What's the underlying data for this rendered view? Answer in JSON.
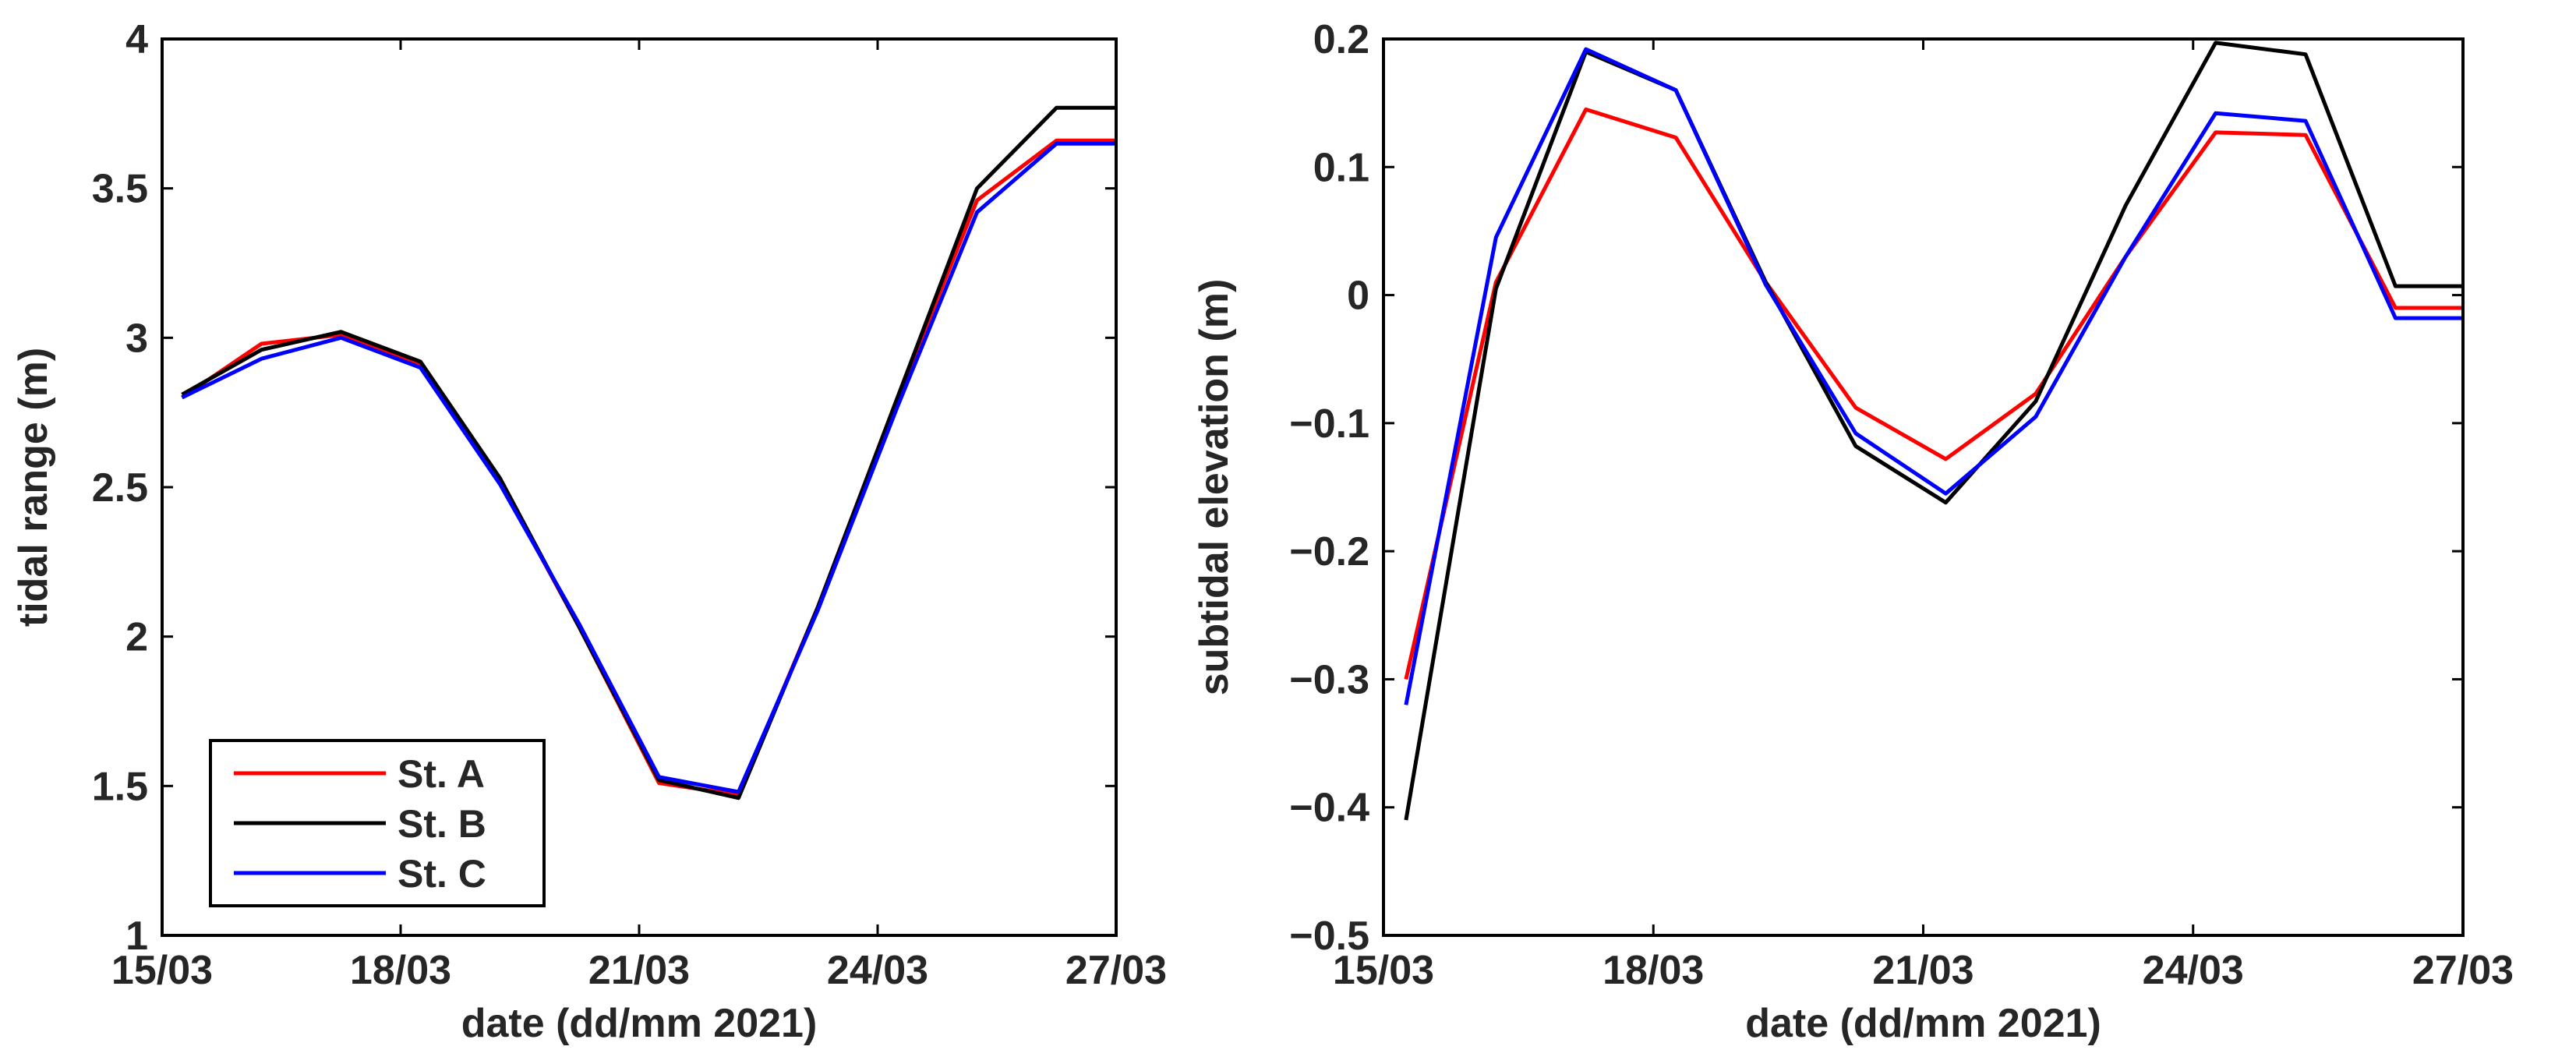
{
  "chart_data": [
    {
      "type": "line",
      "title": "",
      "xlabel": "date (dd/mm 2021)",
      "ylabel": "tidal range (m)",
      "xlim": [
        "15/03",
        "27/03"
      ],
      "xticks": [
        "15/03",
        "18/03",
        "21/03",
        "24/03",
        "27/03"
      ],
      "ylim": [
        1,
        4
      ],
      "yticks": [
        "1",
        "1.5",
        "2",
        "2.5",
        "3",
        "3.5",
        "4"
      ],
      "grid": false,
      "legend": {
        "position": "bottom-left",
        "entries": [
          "St. A",
          "St. B",
          "St. C"
        ]
      },
      "x": [
        "15/03 06:00",
        "16/03 06:00",
        "17/03 06:00",
        "18/03 06:00",
        "19/03 06:00",
        "20/03 06:00",
        "21/03 06:00",
        "22/03 06:00",
        "23/03 06:00",
        "24/03 06:00",
        "25/03 06:00",
        "26/03 06:00",
        "27/03 00:00"
      ],
      "series": [
        {
          "name": "St. A",
          "color": "#ff0000",
          "values": [
            2.8,
            2.98,
            3.01,
            2.91,
            2.52,
            2.03,
            1.51,
            1.47,
            2.1,
            2.8,
            3.46,
            3.66,
            3.66
          ]
        },
        {
          "name": "St. B",
          "color": "#000000",
          "values": [
            2.81,
            2.96,
            3.02,
            2.92,
            2.53,
            2.03,
            1.52,
            1.46,
            2.1,
            2.8,
            3.5,
            3.77,
            3.77
          ]
        },
        {
          "name": "St. C",
          "color": "#0000ff",
          "values": [
            2.8,
            2.93,
            3.0,
            2.9,
            2.51,
            2.04,
            1.53,
            1.48,
            2.09,
            2.77,
            3.42,
            3.65,
            3.65
          ]
        }
      ]
    },
    {
      "type": "line",
      "title": "",
      "xlabel": "date (dd/mm 2021)",
      "ylabel": "subtidal elevation (m)",
      "xlim": [
        "15/03",
        "27/03"
      ],
      "xticks": [
        "15/03",
        "18/03",
        "21/03",
        "24/03",
        "27/03"
      ],
      "ylim": [
        -0.5,
        0.2
      ],
      "yticks": [
        "−0.5",
        "−0.4",
        "−0.3",
        "−0.2",
        "−0.1",
        "0",
        "0.1",
        "0.2"
      ],
      "grid": false,
      "x": [
        "15/03 06:00",
        "16/03 06:00",
        "17/03 06:00",
        "18/03 06:00",
        "19/03 06:00",
        "20/03 06:00",
        "21/03 06:00",
        "22/03 06:00",
        "23/03 06:00",
        "24/03 06:00",
        "25/03 06:00",
        "26/03 06:00",
        "27/03 00:00"
      ],
      "series": [
        {
          "name": "St. A",
          "color": "#ff0000",
          "values": [
            -0.3,
            0.01,
            0.145,
            0.123,
            0.01,
            -0.088,
            -0.128,
            -0.077,
            0.03,
            0.127,
            0.125,
            -0.01,
            -0.01
          ]
        },
        {
          "name": "St. B",
          "color": "#000000",
          "values": [
            -0.41,
            0.005,
            0.19,
            0.16,
            0.01,
            -0.118,
            -0.162,
            -0.083,
            0.07,
            0.197,
            0.188,
            0.007,
            0.007
          ]
        },
        {
          "name": "St. C",
          "color": "#0000ff",
          "values": [
            -0.32,
            0.045,
            0.192,
            0.16,
            0.008,
            -0.108,
            -0.155,
            -0.095,
            0.03,
            0.142,
            0.136,
            -0.018,
            -0.018
          ]
        }
      ]
    }
  ]
}
